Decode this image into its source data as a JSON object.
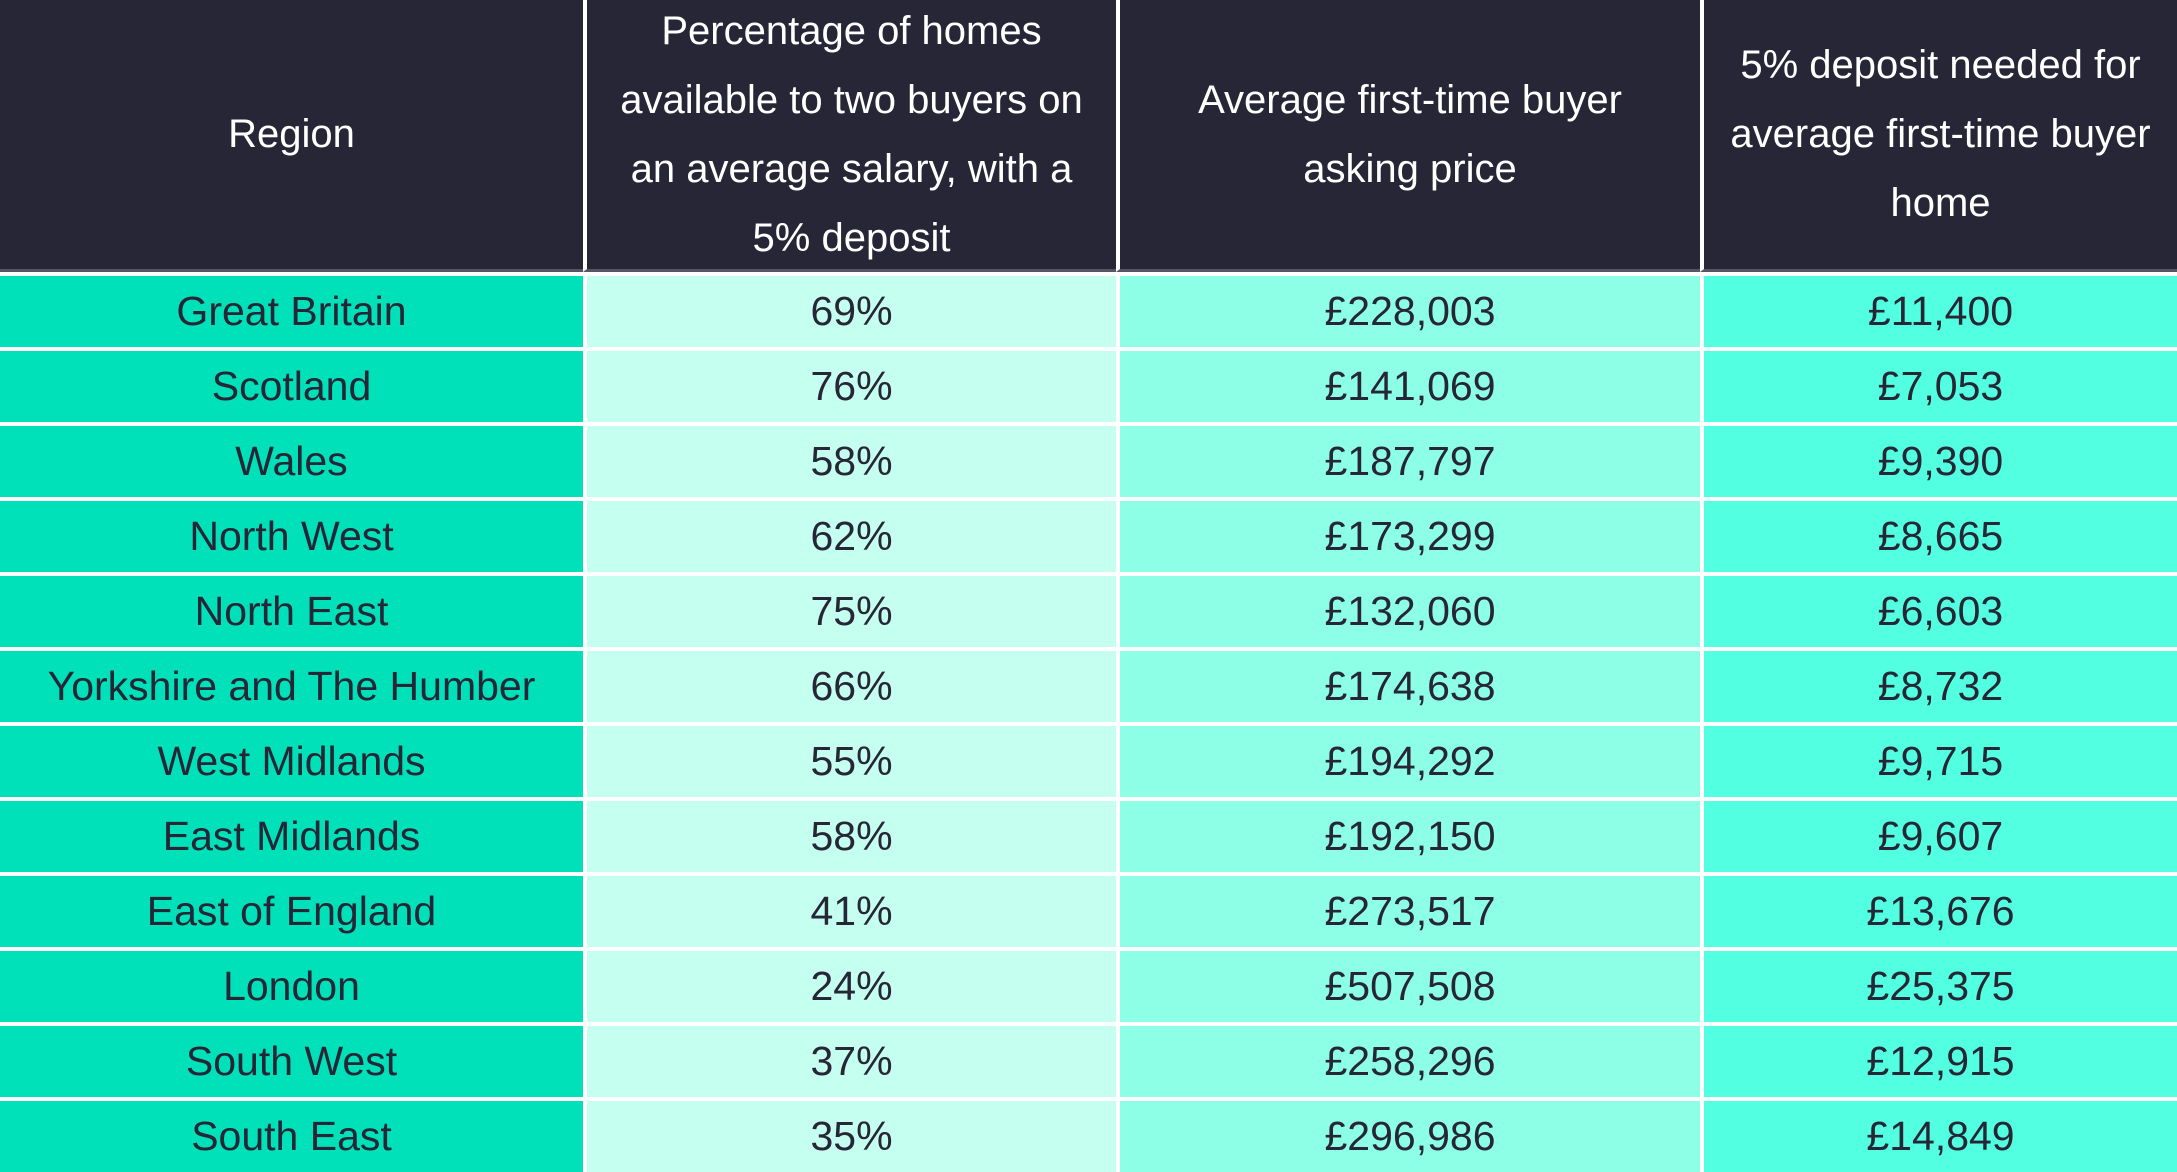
{
  "table": {
    "headers": [
      "Region",
      "Percentage of homes available to two buyers on an average salary, with a 5% deposit",
      "Average first-time buyer asking price",
      "5% deposit needed for average first-time buyer home"
    ],
    "rows": [
      {
        "region": "Great Britain",
        "pct": "69%",
        "price": "£228,003",
        "deposit": "£11,400"
      },
      {
        "region": "Scotland",
        "pct": "76%",
        "price": "£141,069",
        "deposit": "£7,053"
      },
      {
        "region": "Wales",
        "pct": "58%",
        "price": "£187,797",
        "deposit": "£9,390"
      },
      {
        "region": "North West",
        "pct": "62%",
        "price": "£173,299",
        "deposit": "£8,665"
      },
      {
        "region": "North East",
        "pct": "75%",
        "price": "£132,060",
        "deposit": "£6,603"
      },
      {
        "region": "Yorkshire and The Humber",
        "pct": "66%",
        "price": "£174,638",
        "deposit": "£8,732"
      },
      {
        "region": "West Midlands",
        "pct": "55%",
        "price": "£194,292",
        "deposit": "£9,715"
      },
      {
        "region": "East Midlands",
        "pct": "58%",
        "price": "£192,150",
        "deposit": "£9,607"
      },
      {
        "region": "East of England",
        "pct": "41%",
        "price": "£273,517",
        "deposit": "£13,676"
      },
      {
        "region": "London",
        "pct": "24%",
        "price": "£507,508",
        "deposit": "£25,375"
      },
      {
        "region": "South West",
        "pct": "37%",
        "price": "£258,296",
        "deposit": "£12,915"
      },
      {
        "region": "South East",
        "pct": "35%",
        "price": "£296,986",
        "deposit": "£14,849"
      }
    ]
  },
  "colors": {
    "header_bg": "#272636",
    "region_col": "#00e0b9",
    "pct_col": "#c4fff0",
    "price_col": "#8cffe6",
    "deposit_col": "#52ffe0",
    "text_dark": "#272636"
  }
}
